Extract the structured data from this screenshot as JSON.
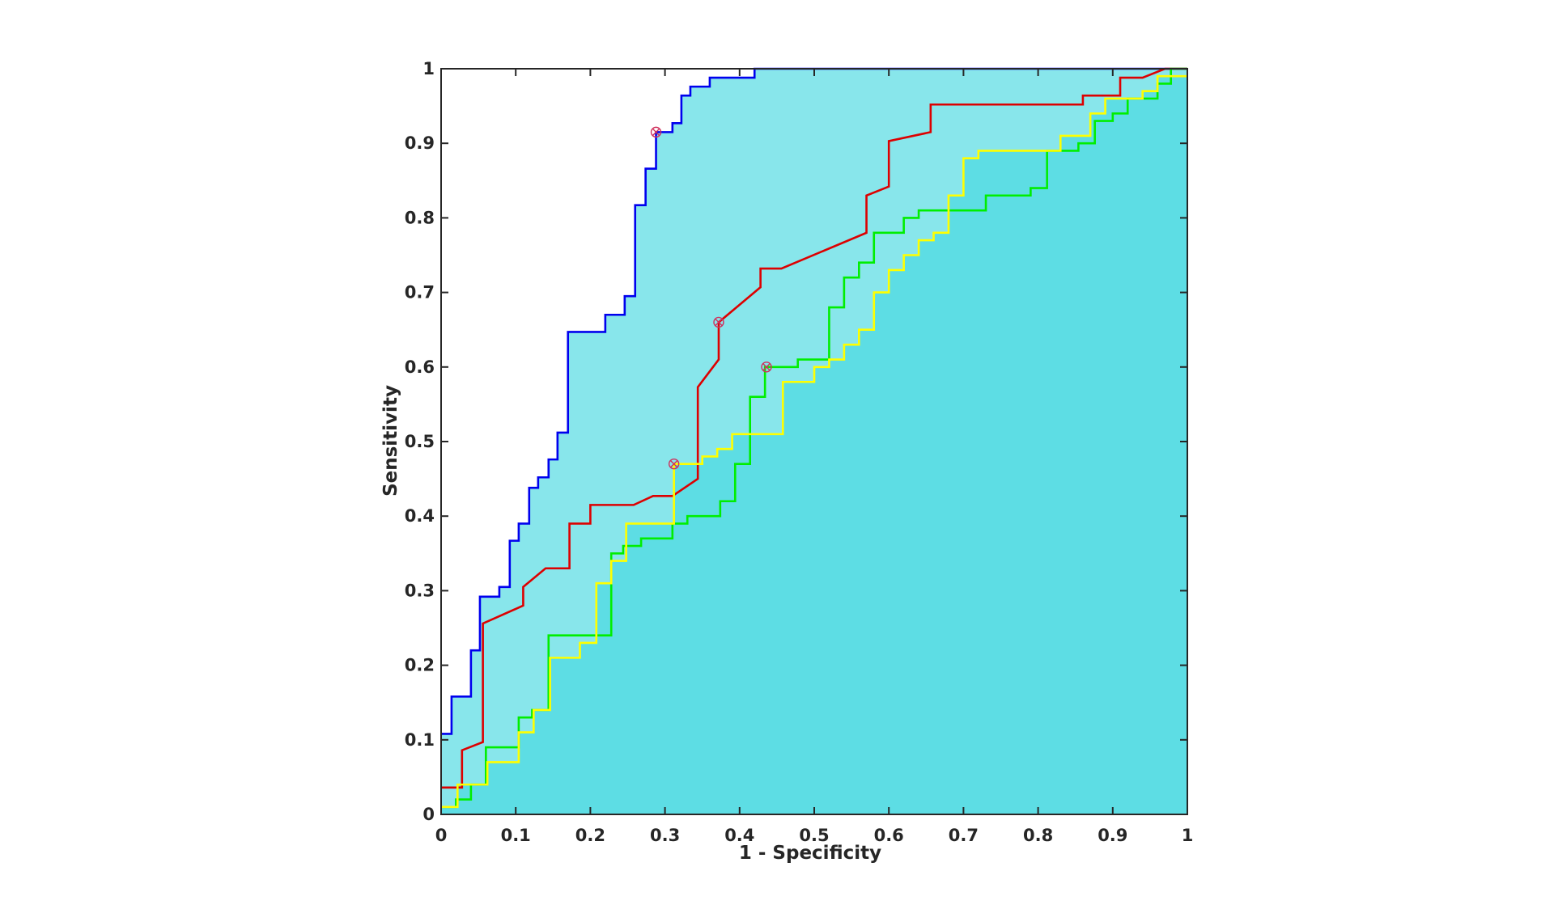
{
  "chart_data": {
    "type": "line",
    "title": "",
    "xlabel": "1 - Specificity",
    "ylabel": "Sensitivity",
    "xlim": [
      0,
      1
    ],
    "ylim": [
      0,
      1
    ],
    "x_ticks": [
      "0",
      "0.1",
      "0.2",
      "0.3",
      "0.4",
      "0.5",
      "0.6",
      "0.7",
      "0.8",
      "0.9",
      "1"
    ],
    "y_ticks": [
      "0",
      "0.1",
      "0.2",
      "0.3",
      "0.4",
      "0.5",
      "0.6",
      "0.7",
      "0.8",
      "0.9",
      "1"
    ],
    "grid": false,
    "legend": "none",
    "colors": {
      "background": "#ffffff",
      "fill_upper": "#88e6eb",
      "fill_lower": "#5ddde4",
      "axis": "#262626",
      "marker": "#d0305c"
    },
    "series": [
      {
        "color": "#0000ee",
        "points": [
          [
            0,
            0.108
          ],
          [
            0.014,
            0.108
          ],
          [
            0.014,
            0.158
          ],
          [
            0.04,
            0.158
          ],
          [
            0.04,
            0.22
          ],
          [
            0.052,
            0.22
          ],
          [
            0.052,
            0.292
          ],
          [
            0.078,
            0.292
          ],
          [
            0.078,
            0.305
          ],
          [
            0.092,
            0.305
          ],
          [
            0.092,
            0.367
          ],
          [
            0.104,
            0.367
          ],
          [
            0.104,
            0.39
          ],
          [
            0.118,
            0.39
          ],
          [
            0.118,
            0.438
          ],
          [
            0.13,
            0.438
          ],
          [
            0.13,
            0.452
          ],
          [
            0.144,
            0.452
          ],
          [
            0.144,
            0.476
          ],
          [
            0.156,
            0.476
          ],
          [
            0.156,
            0.512
          ],
          [
            0.17,
            0.512
          ],
          [
            0.17,
            0.647
          ],
          [
            0.22,
            0.647
          ],
          [
            0.22,
            0.67
          ],
          [
            0.246,
            0.67
          ],
          [
            0.246,
            0.695
          ],
          [
            0.26,
            0.695
          ],
          [
            0.26,
            0.817
          ],
          [
            0.274,
            0.817
          ],
          [
            0.274,
            0.866
          ],
          [
            0.288,
            0.866
          ],
          [
            0.288,
            0.915
          ],
          [
            0.31,
            0.915
          ],
          [
            0.31,
            0.927
          ],
          [
            0.322,
            0.927
          ],
          [
            0.322,
            0.964
          ],
          [
            0.334,
            0.964
          ],
          [
            0.334,
            0.976
          ],
          [
            0.36,
            0.976
          ],
          [
            0.36,
            0.988
          ],
          [
            0.42,
            0.988
          ],
          [
            0.42,
            1
          ],
          [
            1,
            1
          ]
        ],
        "operating_point": [
          0.288,
          0.915
        ]
      },
      {
        "color": "#dd0000",
        "points": [
          [
            0,
            0.036
          ],
          [
            0.028,
            0.036
          ],
          [
            0.028,
            0.086
          ],
          [
            0.056,
            0.097
          ],
          [
            0.056,
            0.256
          ],
          [
            0.11,
            0.28
          ],
          [
            0.11,
            0.305
          ],
          [
            0.14,
            0.33
          ],
          [
            0.172,
            0.33
          ],
          [
            0.172,
            0.39
          ],
          [
            0.2,
            0.39
          ],
          [
            0.2,
            0.415
          ],
          [
            0.258,
            0.415
          ],
          [
            0.284,
            0.427
          ],
          [
            0.31,
            0.427
          ],
          [
            0.344,
            0.45
          ],
          [
            0.344,
            0.573
          ],
          [
            0.372,
            0.61
          ],
          [
            0.372,
            0.66
          ],
          [
            0.428,
            0.707
          ],
          [
            0.428,
            0.732
          ],
          [
            0.456,
            0.732
          ],
          [
            0.57,
            0.78
          ],
          [
            0.57,
            0.83
          ],
          [
            0.6,
            0.842
          ],
          [
            0.6,
            0.903
          ],
          [
            0.656,
            0.915
          ],
          [
            0.656,
            0.952
          ],
          [
            0.86,
            0.952
          ],
          [
            0.86,
            0.964
          ],
          [
            0.91,
            0.964
          ],
          [
            0.91,
            0.988
          ],
          [
            0.94,
            0.988
          ],
          [
            0.97,
            1
          ],
          [
            1,
            1
          ]
        ],
        "operating_point": [
          0.372,
          0.66
        ]
      },
      {
        "color": "#00ee00",
        "points": [
          [
            0,
            0.01
          ],
          [
            0.02,
            0.01
          ],
          [
            0.02,
            0.02
          ],
          [
            0.04,
            0.02
          ],
          [
            0.04,
            0.04
          ],
          [
            0.06,
            0.04
          ],
          [
            0.06,
            0.09
          ],
          [
            0.104,
            0.09
          ],
          [
            0.104,
            0.13
          ],
          [
            0.122,
            0.13
          ],
          [
            0.122,
            0.14
          ],
          [
            0.144,
            0.14
          ],
          [
            0.144,
            0.24
          ],
          [
            0.228,
            0.24
          ],
          [
            0.228,
            0.35
          ],
          [
            0.244,
            0.35
          ],
          [
            0.244,
            0.36
          ],
          [
            0.268,
            0.36
          ],
          [
            0.268,
            0.37
          ],
          [
            0.31,
            0.37
          ],
          [
            0.31,
            0.39
          ],
          [
            0.33,
            0.39
          ],
          [
            0.33,
            0.4
          ],
          [
            0.374,
            0.4
          ],
          [
            0.374,
            0.42
          ],
          [
            0.394,
            0.42
          ],
          [
            0.394,
            0.47
          ],
          [
            0.414,
            0.47
          ],
          [
            0.414,
            0.56
          ],
          [
            0.434,
            0.56
          ],
          [
            0.434,
            0.6
          ],
          [
            0.478,
            0.6
          ],
          [
            0.478,
            0.61
          ],
          [
            0.52,
            0.61
          ],
          [
            0.52,
            0.68
          ],
          [
            0.54,
            0.68
          ],
          [
            0.54,
            0.72
          ],
          [
            0.56,
            0.72
          ],
          [
            0.56,
            0.74
          ],
          [
            0.58,
            0.74
          ],
          [
            0.58,
            0.78
          ],
          [
            0.62,
            0.78
          ],
          [
            0.62,
            0.8
          ],
          [
            0.64,
            0.8
          ],
          [
            0.64,
            0.81
          ],
          [
            0.73,
            0.81
          ],
          [
            0.73,
            0.83
          ],
          [
            0.79,
            0.83
          ],
          [
            0.79,
            0.84
          ],
          [
            0.812,
            0.84
          ],
          [
            0.812,
            0.89
          ],
          [
            0.854,
            0.89
          ],
          [
            0.854,
            0.9
          ],
          [
            0.876,
            0.9
          ],
          [
            0.876,
            0.93
          ],
          [
            0.9,
            0.93
          ],
          [
            0.9,
            0.94
          ],
          [
            0.92,
            0.94
          ],
          [
            0.92,
            0.96
          ],
          [
            0.96,
            0.96
          ],
          [
            0.96,
            0.98
          ],
          [
            0.978,
            0.98
          ],
          [
            0.978,
            1
          ],
          [
            1,
            1
          ]
        ],
        "operating_point": [
          0.436,
          0.6
        ]
      },
      {
        "color": "#ffff00",
        "points": [
          [
            0,
            0.01
          ],
          [
            0.022,
            0.01
          ],
          [
            0.022,
            0.04
          ],
          [
            0.062,
            0.04
          ],
          [
            0.062,
            0.07
          ],
          [
            0.104,
            0.07
          ],
          [
            0.104,
            0.11
          ],
          [
            0.124,
            0.11
          ],
          [
            0.124,
            0.14
          ],
          [
            0.146,
            0.14
          ],
          [
            0.146,
            0.21
          ],
          [
            0.186,
            0.21
          ],
          [
            0.186,
            0.23
          ],
          [
            0.208,
            0.23
          ],
          [
            0.208,
            0.31
          ],
          [
            0.228,
            0.31
          ],
          [
            0.228,
            0.34
          ],
          [
            0.248,
            0.34
          ],
          [
            0.248,
            0.39
          ],
          [
            0.312,
            0.39
          ],
          [
            0.312,
            0.47
          ],
          [
            0.35,
            0.47
          ],
          [
            0.35,
            0.48
          ],
          [
            0.37,
            0.48
          ],
          [
            0.37,
            0.49
          ],
          [
            0.39,
            0.49
          ],
          [
            0.39,
            0.51
          ],
          [
            0.458,
            0.51
          ],
          [
            0.458,
            0.58
          ],
          [
            0.5,
            0.58
          ],
          [
            0.5,
            0.6
          ],
          [
            0.52,
            0.6
          ],
          [
            0.52,
            0.61
          ],
          [
            0.54,
            0.61
          ],
          [
            0.54,
            0.63
          ],
          [
            0.56,
            0.63
          ],
          [
            0.56,
            0.65
          ],
          [
            0.58,
            0.65
          ],
          [
            0.58,
            0.7
          ],
          [
            0.6,
            0.7
          ],
          [
            0.6,
            0.73
          ],
          [
            0.62,
            0.73
          ],
          [
            0.62,
            0.75
          ],
          [
            0.64,
            0.75
          ],
          [
            0.64,
            0.77
          ],
          [
            0.66,
            0.77
          ],
          [
            0.66,
            0.78
          ],
          [
            0.68,
            0.78
          ],
          [
            0.68,
            0.83
          ],
          [
            0.7,
            0.83
          ],
          [
            0.7,
            0.88
          ],
          [
            0.72,
            0.88
          ],
          [
            0.72,
            0.89
          ],
          [
            0.83,
            0.89
          ],
          [
            0.83,
            0.91
          ],
          [
            0.87,
            0.91
          ],
          [
            0.87,
            0.94
          ],
          [
            0.89,
            0.94
          ],
          [
            0.89,
            0.96
          ],
          [
            0.94,
            0.96
          ],
          [
            0.94,
            0.97
          ],
          [
            0.96,
            0.97
          ],
          [
            0.96,
            0.99
          ],
          [
            1,
            0.99
          ]
        ],
        "operating_point": [
          0.312,
          0.47
        ]
      }
    ]
  }
}
